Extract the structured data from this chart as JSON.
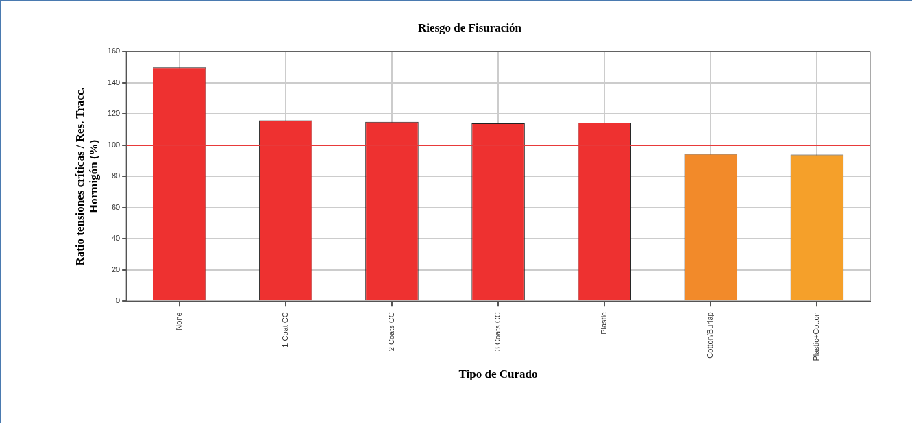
{
  "chart_data": {
    "type": "bar",
    "title": "Riesgo de Fisuración",
    "xlabel": "Tipo de Curado",
    "ylabel": "Ratio tensiones críticas / Res. Tracc.\nHormigón (%)",
    "categories": [
      "None",
      "1 Coat CC",
      "2 Coats CC",
      "3 Coats CC",
      "Plastic",
      "Cotton/Burlap",
      "Plastic+Cotton"
    ],
    "values": [
      150,
      116,
      115,
      114,
      114.5,
      94.5,
      94
    ],
    "colors": [
      "#ee3130",
      "#ee3130",
      "#ee3130",
      "#ee3130",
      "#ee3130",
      "#f28a2a",
      "#f5a02a"
    ],
    "ylim": [
      0,
      160
    ],
    "yticks": [
      0,
      20,
      40,
      60,
      80,
      100,
      120,
      140,
      160
    ],
    "grid": true,
    "legend": false,
    "ref_lines": [
      {
        "axis": "y",
        "value": 100,
        "color": "#e83a3a"
      }
    ]
  }
}
